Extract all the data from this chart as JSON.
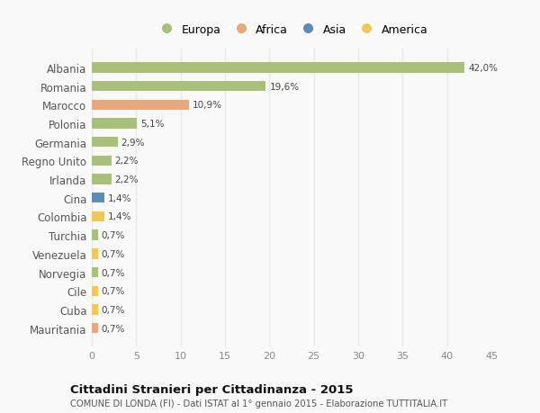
{
  "countries": [
    "Albania",
    "Romania",
    "Marocco",
    "Polonia",
    "Germania",
    "Regno Unito",
    "Irlanda",
    "Cina",
    "Colombia",
    "Turchia",
    "Venezuela",
    "Norvegia",
    "Cile",
    "Cuba",
    "Mauritania"
  ],
  "values": [
    42.0,
    19.6,
    10.9,
    5.1,
    2.9,
    2.2,
    2.2,
    1.4,
    1.4,
    0.7,
    0.7,
    0.7,
    0.7,
    0.7,
    0.7
  ],
  "labels": [
    "42,0%",
    "19,6%",
    "10,9%",
    "5,1%",
    "2,9%",
    "2,2%",
    "2,2%",
    "1,4%",
    "1,4%",
    "0,7%",
    "0,7%",
    "0,7%",
    "0,7%",
    "0,7%",
    "0,7%"
  ],
  "continents": [
    "Europa",
    "Europa",
    "Africa",
    "Europa",
    "Europa",
    "Europa",
    "Europa",
    "Asia",
    "America",
    "Europa",
    "America",
    "Europa",
    "America",
    "America",
    "Africa"
  ],
  "colors": {
    "Europa": "#a8c07a",
    "Africa": "#e8a87c",
    "Asia": "#5b8db8",
    "America": "#f0c857"
  },
  "title": "Cittadini Stranieri per Cittadinanza - 2015",
  "subtitle": "COMUNE DI LONDA (FI) - Dati ISTAT al 1° gennaio 2015 - Elaborazione TUTTITALIA.IT",
  "xlim": [
    0,
    45
  ],
  "xticks": [
    0,
    5,
    10,
    15,
    20,
    25,
    30,
    35,
    40,
    45
  ],
  "background_color": "#f9f9f9",
  "grid_color": "#e8e8e8",
  "bar_height": 0.55,
  "legend_order": [
    "Europa",
    "Africa",
    "Asia",
    "America"
  ]
}
